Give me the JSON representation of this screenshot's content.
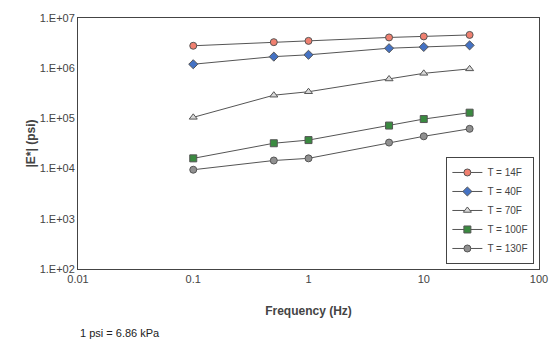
{
  "chart_data": {
    "type": "line",
    "x": [
      0.1,
      0.5,
      1.0,
      5.0,
      10.0,
      25.0
    ],
    "series": [
      {
        "name": "T = 14F",
        "marker": "circle",
        "color": "#f08070",
        "values": [
          2800000,
          3300000,
          3500000,
          4100000,
          4300000,
          4600000
        ]
      },
      {
        "name": "T = 40F",
        "marker": "diamond",
        "color": "#4472c4",
        "values": [
          1200000,
          1700000,
          1850000,
          2500000,
          2650000,
          2850000
        ]
      },
      {
        "name": "T = 70F",
        "marker": "triangle-up",
        "color": "#d8d8d8",
        "values": [
          105000,
          290000,
          340000,
          610000,
          790000,
          970000
        ]
      },
      {
        "name": "T = 100F",
        "marker": "square",
        "color": "#3a8a40",
        "values": [
          16000,
          32000,
          37000,
          72000,
          97000,
          130000
        ]
      },
      {
        "name": "T = 130F",
        "marker": "circle",
        "color": "#909090",
        "values": [
          9500,
          14500,
          16000,
          33000,
          44000,
          62000
        ]
      }
    ],
    "color": "#555555",
    "x_label": "Frequency (Hz)",
    "y_label": "|E*| (psi)",
    "annotations": [
      "1 psi = 6.86 kPa"
    ],
    "log": true,
    "xlim": [
      0.01,
      100
    ],
    "ylim": [
      100,
      10000000
    ],
    "xticks": [
      0.01,
      0.1,
      1,
      10,
      100
    ],
    "yticks": [
      {
        "value": 100,
        "label": "1.E+02"
      },
      {
        "value": 1000,
        "label": "1.E+03"
      },
      {
        "value": 10000,
        "label": "1.E+04"
      },
      {
        "value": 100000,
        "label": "1.E+05"
      },
      {
        "value": 1000000,
        "label": "1.E+06"
      },
      {
        "value": 10000000,
        "label": "1.E+07"
      }
    ],
    "grid": false,
    "legend": "lower right"
  }
}
